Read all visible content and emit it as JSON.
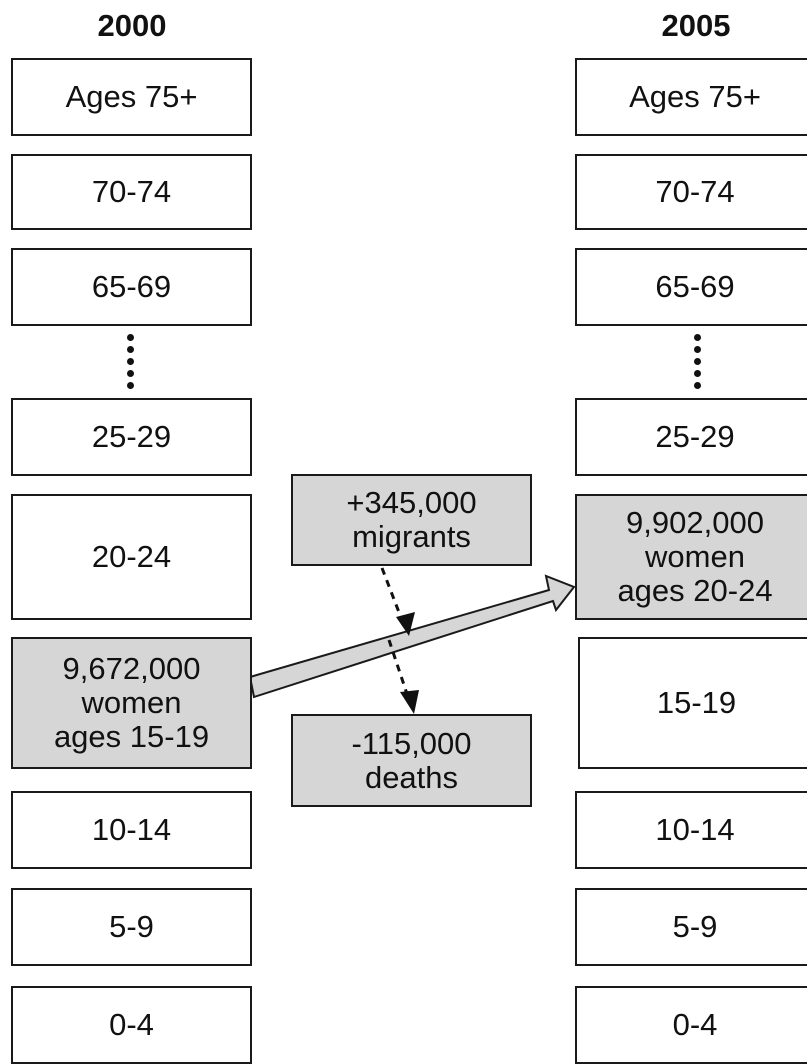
{
  "years": {
    "left": "2000",
    "right": "2005"
  },
  "left_column": {
    "ages_75": "Ages 75+",
    "age_70": "70-74",
    "age_65": "65-69",
    "age_25": "25-29",
    "age_20": "20-24",
    "highlight": {
      "line1": "9,672,000",
      "line2": "women",
      "line3": "ages 15-19"
    },
    "age_10": "10-14",
    "age_5": "5-9",
    "age_0": "0-4"
  },
  "right_column": {
    "ages_75": "Ages 75+",
    "age_70": "70-74",
    "age_65": "65-69",
    "age_25": "25-29",
    "highlight": {
      "line1": "9,902,000",
      "line2": "women",
      "line3": "ages 20-24"
    },
    "age_15": "15-19",
    "age_10": "10-14",
    "age_5": "5-9",
    "age_0": "0-4"
  },
  "middle": {
    "migrants": {
      "line1": "+345,000",
      "line2": "migrants"
    },
    "deaths": {
      "line1": "-115,000",
      "line2": "deaths"
    }
  },
  "colors": {
    "shaded_fill": "#d6d6d6",
    "border": "#1a1a1a",
    "background": "#ffffff"
  }
}
